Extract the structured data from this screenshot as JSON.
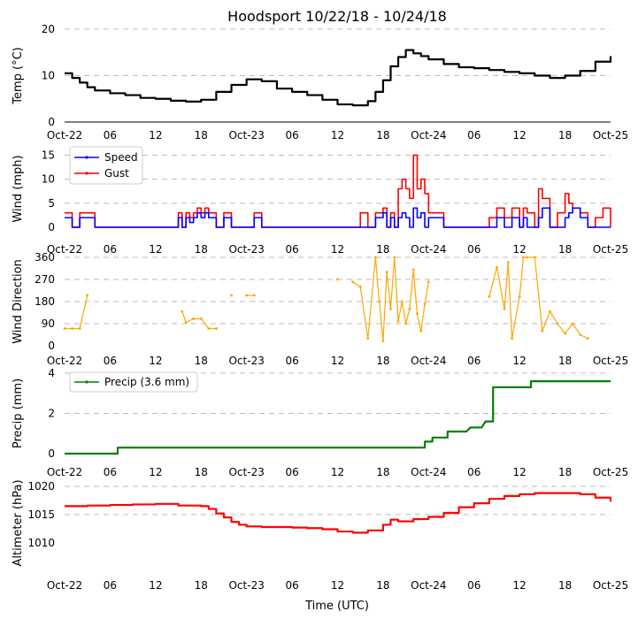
{
  "title": "Hoodsport 10/22/18 - 10/24/18",
  "xlabel": "Time (UTC)",
  "x_ticks": [
    "Oct-22",
    "06",
    "12",
    "18",
    "Oct-23",
    "06",
    "12",
    "18",
    "Oct-24",
    "06",
    "12",
    "18",
    "Oct-25"
  ],
  "colors": {
    "temp": "#000000",
    "speed": "#0000ff",
    "gust": "#ff0000",
    "dir": "#ffa500",
    "precip": "#008000",
    "alt": "#ff0000"
  },
  "chart_data": [
    {
      "type": "line",
      "ylabel": "Temp ($^{\\circ}$C)",
      "ylabel_display": "Temp (°C)",
      "ylim": [
        0,
        20
      ],
      "y_ticks": [
        "0",
        "10",
        "20"
      ],
      "x_hours": [
        0,
        1,
        2,
        3,
        4,
        6,
        8,
        10,
        12,
        14,
        16,
        18,
        20,
        22,
        24,
        26,
        28,
        30,
        32,
        34,
        36,
        38,
        40,
        41,
        42,
        43,
        44,
        45,
        46,
        47,
        48,
        50,
        52,
        54,
        56,
        58,
        60,
        62,
        64,
        66,
        68,
        70,
        72
      ],
      "series": [
        {
          "name": "Temp",
          "values": [
            10.5,
            9.5,
            8.5,
            7.5,
            6.8,
            6.2,
            5.8,
            5.2,
            5.0,
            4.6,
            4.4,
            4.8,
            6.5,
            8.0,
            9.2,
            8.8,
            7.2,
            6.5,
            5.8,
            4.8,
            3.8,
            3.6,
            4.5,
            6.5,
            9.0,
            12.0,
            14.0,
            15.5,
            14.8,
            14.2,
            13.5,
            12.5,
            11.8,
            11.6,
            11.2,
            10.8,
            10.5,
            10.0,
            9.5,
            10.0,
            11.0,
            13.0,
            14.2
          ]
        }
      ]
    },
    {
      "type": "line",
      "ylabel": "Wind (mph)",
      "ylim": [
        0,
        16
      ],
      "y_ticks": [
        "0",
        "5",
        "10",
        "15"
      ],
      "legend": [
        "Speed",
        "Gust"
      ],
      "x_hours": [
        0,
        1,
        2,
        4,
        6,
        8,
        10,
        12,
        14,
        15,
        15.5,
        16,
        16.5,
        17,
        17.5,
        18,
        18.5,
        19,
        20,
        21,
        22,
        24,
        25,
        26,
        28,
        30,
        32,
        34,
        36,
        38,
        39,
        40,
        41,
        42,
        42.5,
        43,
        43.5,
        44,
        44.5,
        45,
        45.5,
        46,
        46.5,
        47,
        47.5,
        48,
        50,
        52,
        54,
        56,
        57,
        58,
        59,
        60,
        60.5,
        61,
        62,
        62.5,
        63,
        64,
        65,
        66,
        66.5,
        67,
        68,
        69,
        70,
        71,
        72
      ],
      "series": [
        {
          "name": "Speed",
          "values": [
            2,
            0,
            2,
            0,
            0,
            0,
            0,
            0,
            0,
            2,
            0,
            2,
            1,
            2,
            3,
            2,
            3,
            2,
            0,
            2,
            0,
            0,
            2,
            0,
            0,
            0,
            0,
            0,
            0,
            0,
            0,
            0,
            2,
            3,
            0,
            2,
            0,
            2,
            3,
            2,
            0,
            4,
            2,
            3,
            0,
            2,
            0,
            0,
            0,
            0,
            2,
            0,
            2,
            0,
            2,
            0,
            0,
            2,
            4,
            0,
            0,
            2,
            3,
            4,
            2,
            0,
            0,
            0,
            0
          ]
        },
        {
          "name": "Gust",
          "values": [
            3,
            0,
            3,
            0,
            0,
            0,
            0,
            0,
            0,
            3,
            0,
            3,
            2,
            3,
            4,
            3,
            4,
            3,
            0,
            3,
            0,
            0,
            3,
            0,
            0,
            0,
            0,
            0,
            0,
            0,
            3,
            0,
            3,
            4,
            0,
            3,
            0,
            8,
            10,
            8,
            6,
            15,
            8,
            10,
            7,
            3,
            0,
            0,
            0,
            2,
            4,
            2,
            4,
            0,
            4,
            3,
            0,
            8,
            6,
            0,
            3,
            7,
            5,
            4,
            3,
            0,
            2,
            4,
            0
          ]
        }
      ]
    },
    {
      "type": "scatter",
      "ylabel": "Wind Direction",
      "ylim": [
        0,
        360
      ],
      "y_ticks": [
        "0",
        "90",
        "180",
        "270",
        "360"
      ],
      "x_hours": [
        0,
        1,
        2,
        3,
        15.5,
        16,
        17,
        18,
        19,
        20,
        22,
        24,
        25,
        36,
        38,
        39,
        40,
        41,
        41.5,
        42,
        42.5,
        43,
        43.5,
        44,
        44.5,
        45,
        45.5,
        46,
        46.5,
        47,
        47.5,
        48,
        56,
        57,
        58,
        58.5,
        59,
        60,
        60.5,
        61,
        62,
        63,
        64,
        65,
        66,
        67,
        68,
        69
      ],
      "values": [
        70,
        70,
        70,
        205,
        140,
        95,
        110,
        110,
        70,
        70,
        205,
        205,
        205,
        270,
        260,
        240,
        30,
        360,
        180,
        20,
        300,
        150,
        360,
        100,
        180,
        90,
        150,
        310,
        130,
        60,
        170,
        260,
        200,
        320,
        150,
        340,
        30,
        200,
        360,
        360,
        360,
        60,
        140,
        90,
        50,
        90,
        45,
        30
      ]
    },
    {
      "type": "line",
      "ylabel": "Precip (mm)",
      "ylim": [
        0,
        4
      ],
      "y_ticks": [
        "0",
        "2",
        "4"
      ],
      "legend": [
        "Precip (3.6 mm)"
      ],
      "x_hours": [
        0,
        7,
        7.01,
        47.5,
        47.51,
        48.5,
        48.51,
        50.5,
        50.51,
        53,
        53.51,
        55,
        55.51,
        56.5,
        56.51,
        61.5,
        61.51,
        72
      ],
      "series": [
        {
          "name": "Precip (3.6 mm)",
          "values": [
            0,
            0,
            0.3,
            0.3,
            0.6,
            0.6,
            0.8,
            0.8,
            1.1,
            1.1,
            1.3,
            1.3,
            1.6,
            1.6,
            3.3,
            3.3,
            3.6,
            3.6
          ]
        }
      ]
    },
    {
      "type": "line",
      "ylabel": "Altimeter (hPa)",
      "ylim": [
        1007,
        1020
      ],
      "y_ticks": [
        "1010",
        "1015",
        "1020"
      ],
      "x_hours": [
        0,
        3,
        6,
        9,
        12,
        15,
        18,
        19,
        20,
        21,
        22,
        23,
        24,
        26,
        28,
        30,
        32,
        34,
        36,
        38,
        40,
        42,
        43,
        44,
        46,
        48,
        50,
        52,
        54,
        56,
        58,
        60,
        62,
        64,
        66,
        68,
        70,
        72
      ],
      "series": [
        {
          "name": "Altimeter",
          "values": [
            1016.5,
            1016.6,
            1016.7,
            1016.8,
            1016.9,
            1016.6,
            1016.5,
            1016.0,
            1015.2,
            1014.5,
            1013.7,
            1013.2,
            1012.9,
            1012.8,
            1012.8,
            1012.7,
            1012.6,
            1012.4,
            1012.0,
            1011.8,
            1012.2,
            1013.2,
            1014.1,
            1013.8,
            1014.2,
            1014.6,
            1015.3,
            1016.3,
            1017.0,
            1017.8,
            1018.3,
            1018.6,
            1018.8,
            1018.8,
            1018.8,
            1018.6,
            1018.0,
            1017.3
          ]
        }
      ]
    }
  ]
}
